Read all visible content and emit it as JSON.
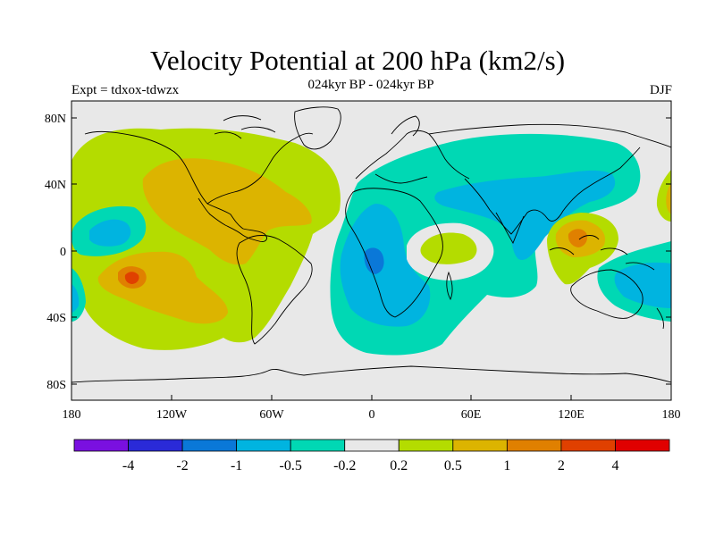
{
  "header": {
    "title": "Velocity Potential at 200 hPa (km2/s)",
    "subtitle": "024kyr BP - 024kyr BP",
    "expt": "Expt = tdxox-tdwzx",
    "season": "DJF"
  },
  "axes": {
    "lat_labels": [
      "80N",
      "40N",
      "0",
      "40S",
      "80S"
    ],
    "lon_labels": [
      "180",
      "120W",
      "60W",
      "0",
      "60E",
      "120E",
      "180"
    ]
  },
  "colorbar": {
    "labels": [
      "-4",
      "-2",
      "-1",
      "-0.5",
      "-0.2",
      "0.2",
      "0.5",
      "1",
      "2",
      "4"
    ],
    "colors": [
      "#7a10e0",
      "#2a2ad8",
      "#0a78d8",
      "#00b4e0",
      "#00d8b4",
      "#e8e8e8",
      "#b4dc00",
      "#dcb400",
      "#e08000",
      "#e04000",
      "#e00000"
    ]
  },
  "fields": {
    "neutral": "#e8e8e8",
    "pos_light": "#b4dc00",
    "pos_mid": "#dcb400",
    "pos_strong": "#e08000",
    "neg_light": "#00d8b4",
    "neg_mid": "#00b4e0",
    "neg_strong": "#0a78d8"
  }
}
